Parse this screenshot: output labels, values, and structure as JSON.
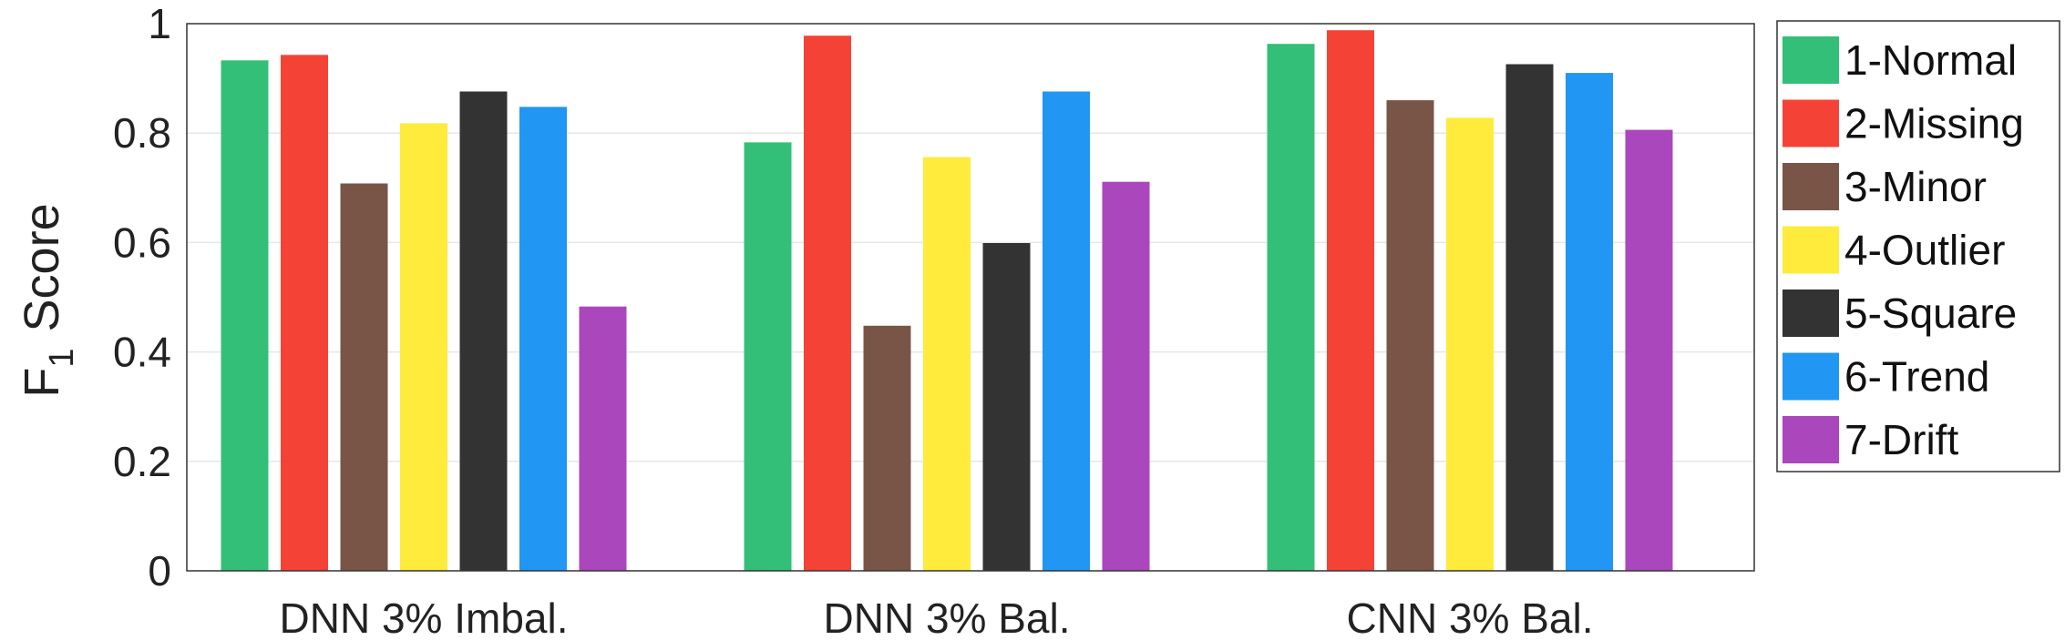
{
  "chart_data": {
    "type": "bar",
    "categories": [
      "DNN 3% Imbal.",
      "DNN 3% Bal.",
      "CNN 3% Bal."
    ],
    "series": [
      {
        "name": "1-Normal",
        "color": "#33bf77",
        "values": [
          0.933,
          0.783,
          0.963
        ]
      },
      {
        "name": "2-Missing",
        "color": "#f44336",
        "values": [
          0.943,
          0.978,
          0.988
        ]
      },
      {
        "name": "3-Minor",
        "color": "#795548",
        "values": [
          0.708,
          0.448,
          0.86
        ]
      },
      {
        "name": "4-Outlier",
        "color": "#ffeb3b",
        "values": [
          0.818,
          0.756,
          0.828
        ]
      },
      {
        "name": "5-Square",
        "color": "#333333",
        "values": [
          0.876,
          0.599,
          0.926
        ]
      },
      {
        "name": "6-Trend",
        "color": "#2196f3",
        "values": [
          0.848,
          0.876,
          0.91
        ]
      },
      {
        "name": "7-Drift",
        "color": "#ab47bc",
        "values": [
          0.483,
          0.711,
          0.806
        ]
      }
    ],
    "yticks": [
      "0",
      "0.2",
      "0.4",
      "0.6",
      "0.8",
      "1"
    ],
    "ylabel": {
      "main": "F",
      "subscript": "1",
      "rest": "Score"
    },
    "ylim": [
      0,
      1
    ],
    "grid": "horizontal",
    "legend_position": "right"
  }
}
